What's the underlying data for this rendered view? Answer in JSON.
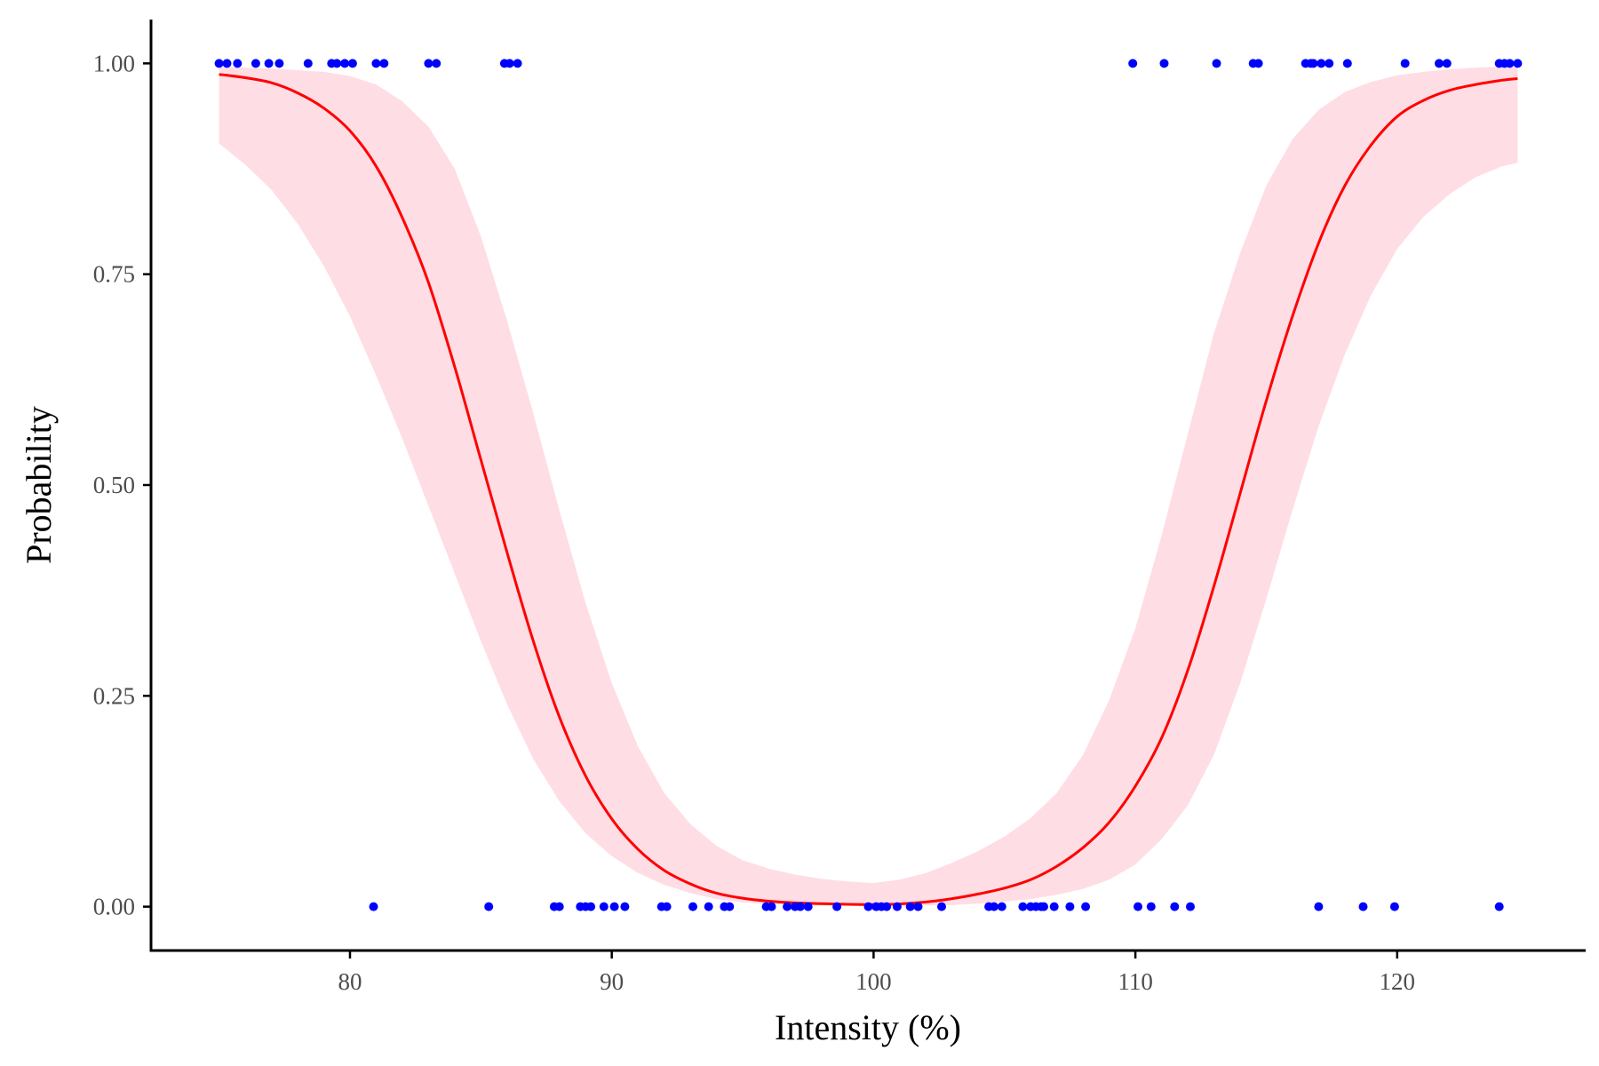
{
  "chart_data": {
    "type": "line",
    "title": "",
    "xlabel": "Intensity (%)",
    "ylabel": "Probability",
    "xlim": [
      72.4,
      127.2
    ],
    "ylim": [
      -0.052,
      1.052
    ],
    "xticks": [
      80,
      90,
      100,
      110,
      120
    ],
    "xtick_labels": [
      "80",
      "90",
      "100",
      "110",
      "120"
    ],
    "yticks": [
      0,
      0.25,
      0.5,
      0.75,
      1
    ],
    "ytick_labels": [
      "0.00",
      "0.25",
      "0.50",
      "0.75",
      "1.00"
    ],
    "grid": false,
    "legend": "none",
    "series": [
      {
        "name": "fitted probability",
        "type": "line",
        "color": "#ff0000",
        "x": [
          75,
          76,
          77,
          78,
          79,
          80,
          81,
          82,
          83,
          84,
          85,
          86,
          87,
          88,
          89,
          90,
          91,
          92,
          93,
          94,
          95,
          96,
          97,
          98,
          99,
          100,
          101,
          102,
          103,
          104,
          105,
          106,
          107,
          108,
          109,
          110,
          111,
          112,
          113,
          114,
          115,
          116,
          117,
          118,
          119,
          120,
          121,
          122,
          123,
          124,
          124.6
        ],
        "y": [
          0.987,
          0.983,
          0.977,
          0.965,
          0.947,
          0.92,
          0.878,
          0.817,
          0.74,
          0.64,
          0.53,
          0.42,
          0.315,
          0.225,
          0.155,
          0.104,
          0.068,
          0.043,
          0.027,
          0.016,
          0.01,
          0.0065,
          0.0045,
          0.0035,
          0.0028,
          0.0025,
          0.0032,
          0.0055,
          0.0095,
          0.015,
          0.022,
          0.032,
          0.048,
          0.07,
          0.1,
          0.143,
          0.2,
          0.28,
          0.38,
          0.49,
          0.6,
          0.7,
          0.787,
          0.855,
          0.903,
          0.937,
          0.956,
          0.968,
          0.975,
          0.98,
          0.982
        ]
      },
      {
        "name": "confidence band",
        "type": "area",
        "color": "#ffdde4",
        "x": [
          75,
          76,
          77,
          78,
          79,
          80,
          81,
          82,
          83,
          84,
          85,
          86,
          87,
          88,
          89,
          90,
          91,
          92,
          93,
          94,
          95,
          96,
          97,
          98,
          99,
          100,
          101,
          102,
          103,
          104,
          105,
          106,
          107,
          108,
          109,
          110,
          111,
          112,
          113,
          114,
          115,
          116,
          117,
          118,
          119,
          120,
          121,
          122,
          123,
          124,
          124.6
        ],
        "lower": [
          0.905,
          0.88,
          0.85,
          0.81,
          0.76,
          0.7,
          0.63,
          0.555,
          0.475,
          0.395,
          0.315,
          0.24,
          0.175,
          0.125,
          0.087,
          0.06,
          0.04,
          0.026,
          0.016,
          0.009,
          0.005,
          0.003,
          0.002,
          0.0015,
          0.0012,
          0.001,
          0.0011,
          0.0015,
          0.002,
          0.0035,
          0.006,
          0.009,
          0.014,
          0.021,
          0.032,
          0.05,
          0.08,
          0.12,
          0.18,
          0.265,
          0.365,
          0.47,
          0.57,
          0.655,
          0.725,
          0.78,
          0.818,
          0.845,
          0.865,
          0.878,
          0.882
        ],
        "upper": [
          0.996,
          0.995,
          0.994,
          0.992,
          0.99,
          0.985,
          0.975,
          0.955,
          0.925,
          0.875,
          0.795,
          0.695,
          0.585,
          0.47,
          0.36,
          0.265,
          0.19,
          0.135,
          0.098,
          0.072,
          0.055,
          0.045,
          0.038,
          0.033,
          0.03,
          0.028,
          0.032,
          0.04,
          0.052,
          0.066,
          0.083,
          0.105,
          0.135,
          0.18,
          0.245,
          0.33,
          0.44,
          0.56,
          0.68,
          0.775,
          0.855,
          0.91,
          0.945,
          0.966,
          0.978,
          0.986,
          0.99,
          0.993,
          0.995,
          0.996,
          0.996
        ]
      },
      {
        "name": "observations y=1",
        "type": "scatter",
        "color": "#0000ff",
        "x": [
          75.0,
          75.3,
          75.7,
          76.4,
          76.9,
          77.3,
          78.4,
          79.3,
          79.5,
          79.8,
          80.1,
          81.0,
          81.3,
          83.0,
          83.3,
          85.9,
          86.1,
          86.4,
          109.9,
          111.1,
          113.1,
          114.5,
          114.7,
          116.5,
          116.7,
          116.8,
          117.1,
          117.4,
          118.1,
          120.3,
          121.6,
          121.9,
          123.9,
          124.1,
          124.3,
          124.6
        ],
        "y": [
          1,
          1,
          1,
          1,
          1,
          1,
          1,
          1,
          1,
          1,
          1,
          1,
          1,
          1,
          1,
          1,
          1,
          1,
          1,
          1,
          1,
          1,
          1,
          1,
          1,
          1,
          1,
          1,
          1,
          1,
          1,
          1,
          1,
          1,
          1,
          1
        ]
      },
      {
        "name": "observations y=0",
        "type": "scatter",
        "color": "#0000ff",
        "x": [
          80.9,
          85.3,
          87.8,
          88.0,
          88.8,
          89.0,
          89.2,
          89.7,
          90.1,
          90.5,
          91.9,
          92.1,
          93.1,
          93.7,
          94.3,
          94.5,
          95.9,
          96.1,
          96.7,
          97.0,
          97.2,
          97.5,
          98.6,
          99.8,
          100.1,
          100.3,
          100.5,
          100.9,
          101.4,
          101.7,
          102.6,
          104.4,
          104.6,
          104.9,
          105.7,
          106.0,
          106.2,
          106.4,
          106.5,
          106.9,
          107.5,
          108.1,
          110.1,
          110.6,
          111.5,
          112.1,
          117.0,
          118.7,
          119.9,
          123.9
        ],
        "y": [
          0,
          0,
          0,
          0,
          0,
          0,
          0,
          0,
          0,
          0,
          0,
          0,
          0,
          0,
          0,
          0,
          0,
          0,
          0,
          0,
          0,
          0,
          0,
          0,
          0,
          0,
          0,
          0,
          0,
          0,
          0,
          0,
          0,
          0,
          0,
          0,
          0,
          0,
          0,
          0,
          0,
          0,
          0,
          0,
          0,
          0,
          0,
          0,
          0,
          0
        ]
      }
    ]
  },
  "axis_color": "#000000"
}
